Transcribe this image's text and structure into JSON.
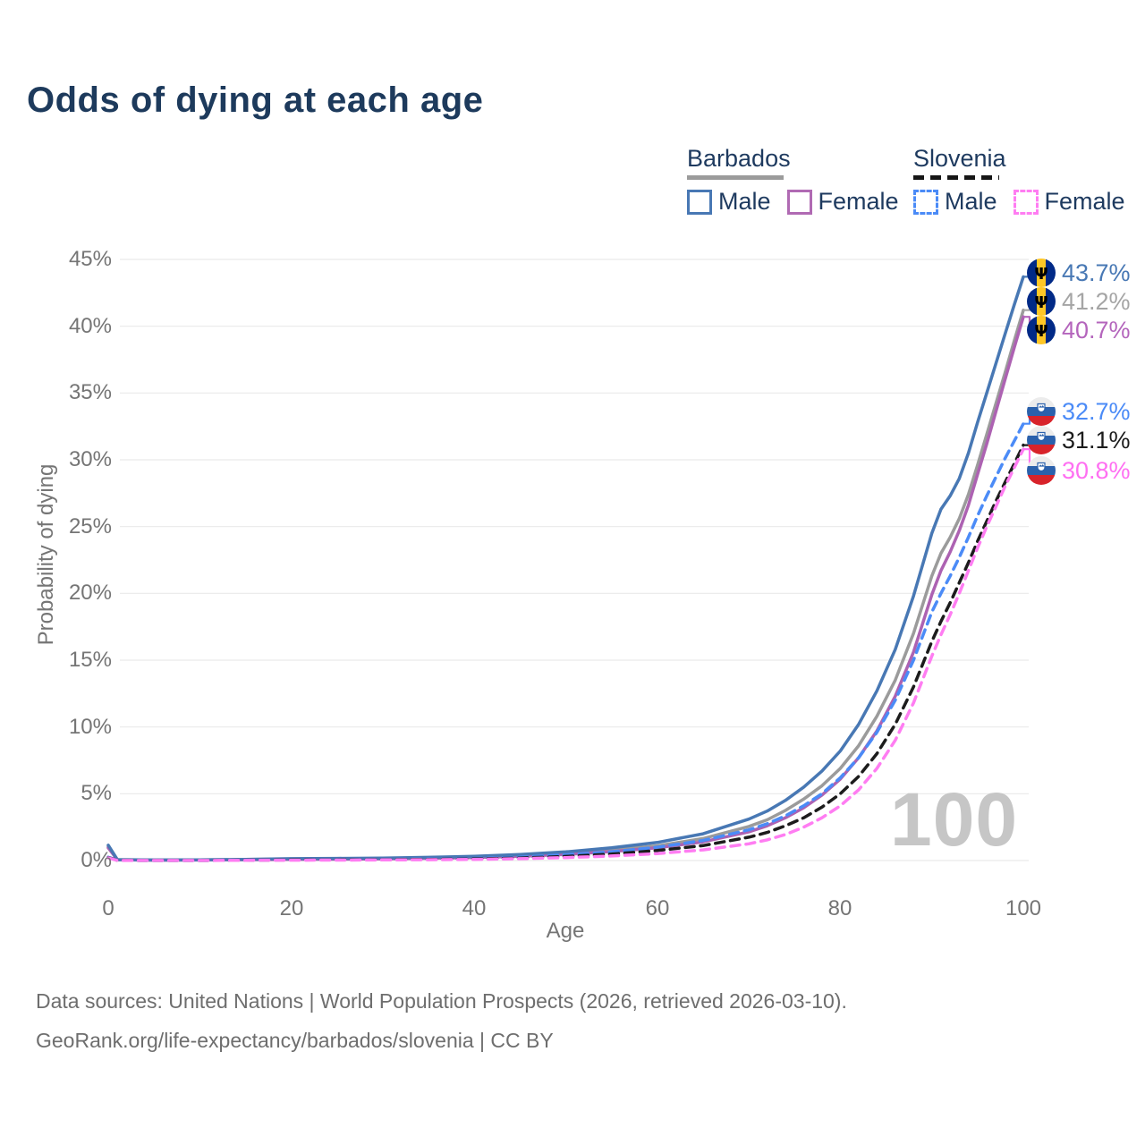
{
  "title": "Odds of dying at each age",
  "legend": {
    "groups": [
      {
        "country": "Barbados",
        "line_style": "solid",
        "items": [
          {
            "label": "Male"
          },
          {
            "label": "Female"
          }
        ]
      },
      {
        "country": "Slovenia",
        "line_style": "dashed",
        "items": [
          {
            "label": "Male"
          },
          {
            "label": "Female"
          }
        ]
      }
    ]
  },
  "y_axis": {
    "title": "Probability of dying",
    "ticks": [
      "45%",
      "40%",
      "35%",
      "30%",
      "25%",
      "20%",
      "15%",
      "10%",
      "5%",
      "0%"
    ]
  },
  "x_axis": {
    "title": "Age",
    "ticks": [
      "0",
      "20",
      "40",
      "60",
      "80",
      "100"
    ]
  },
  "watermark": "100",
  "end_labels": [
    {
      "series": "barbados-male",
      "flag": "barbados",
      "value": "43.7%",
      "color": "#4878b4"
    },
    {
      "series": "barbados-both",
      "flag": "barbados",
      "value": "41.2%",
      "color": "#a5a5a5"
    },
    {
      "series": "barbados-female",
      "flag": "barbados",
      "value": "40.7%",
      "color": "#b465bc"
    },
    {
      "series": "slovenia-male",
      "flag": "slovenia",
      "value": "32.7%",
      "color": "#4b8bf7"
    },
    {
      "series": "slovenia-both",
      "flag": "slovenia",
      "value": "31.1%",
      "color": "#1c1c1c"
    },
    {
      "series": "slovenia-female",
      "flag": "slovenia",
      "value": "30.8%",
      "color": "#ff6ff2"
    }
  ],
  "footer": {
    "line1": "Data sources: United Nations | World Population Prospects (2026, retrieved 2026-03-10).",
    "line2": "GeoRank.org/life-expectancy/barbados/slovenia | CC BY"
  },
  "colors": {
    "title_text": "#1d3a5c",
    "axis_text": "#757575",
    "grid": "#eaeaea",
    "watermark": "#c6c6c6",
    "footer_text": "#6e6e6e",
    "barbados_male": "#4878b4",
    "barbados_both": "#9b9b9b",
    "barbados_female": "#ad62b2",
    "slovenia_male": "#4b8bf7",
    "slovenia_both": "#1c1c1c",
    "slovenia_female": "#ff7df2"
  },
  "chart_data": {
    "type": "line",
    "title": "Odds of dying at each age",
    "xlabel": "Age",
    "ylabel": "Probability of dying",
    "xlim": [
      0,
      100
    ],
    "ylim": [
      0,
      45
    ],
    "y_tick_step": 5,
    "grid": "horizontal",
    "legend_position": "top-right",
    "x": [
      0,
      1,
      5,
      10,
      15,
      20,
      25,
      30,
      35,
      40,
      45,
      50,
      55,
      60,
      65,
      70,
      72,
      74,
      76,
      78,
      80,
      82,
      84,
      86,
      88,
      90,
      91,
      92,
      93,
      94,
      95,
      96,
      97,
      98,
      99,
      100
    ],
    "series": [
      {
        "key": "barbados-both",
        "name": "Barbados Both sexes",
        "color": "#9b9b9b",
        "dash": false,
        "end_value": 41.2,
        "values": [
          1.05,
          0.065,
          0.035,
          0.045,
          0.08,
          0.11,
          0.13,
          0.16,
          0.2,
          0.27,
          0.38,
          0.55,
          0.8,
          1.1,
          1.65,
          2.55,
          3.05,
          3.75,
          4.6,
          5.6,
          6.9,
          8.6,
          10.8,
          13.5,
          17.0,
          21.3,
          23.0,
          24.2,
          25.6,
          27.4,
          29.6,
          31.9,
          34.2,
          36.5,
          38.9,
          41.2
        ]
      },
      {
        "key": "barbados-female",
        "name": "Barbados Female",
        "color": "#ad62b2",
        "dash": false,
        "end_value": 40.7,
        "values": [
          0.95,
          0.06,
          0.03,
          0.04,
          0.06,
          0.08,
          0.1,
          0.13,
          0.17,
          0.23,
          0.32,
          0.46,
          0.67,
          0.95,
          1.4,
          2.15,
          2.6,
          3.2,
          3.95,
          4.9,
          6.1,
          7.7,
          9.7,
          12.3,
          15.6,
          19.9,
          21.7,
          23.1,
          24.7,
          26.6,
          28.9,
          31.2,
          33.6,
          36.0,
          38.4,
          40.7
        ]
      },
      {
        "key": "barbados-male",
        "name": "Barbados Male",
        "color": "#4878b4",
        "dash": false,
        "end_value": 43.7,
        "values": [
          1.15,
          0.07,
          0.04,
          0.05,
          0.09,
          0.14,
          0.16,
          0.19,
          0.24,
          0.32,
          0.45,
          0.65,
          0.95,
          1.35,
          2.0,
          3.1,
          3.7,
          4.5,
          5.5,
          6.7,
          8.2,
          10.2,
          12.7,
          15.8,
          19.8,
          24.5,
          26.3,
          27.3,
          28.6,
          30.5,
          32.8,
          35.0,
          37.2,
          39.4,
          41.6,
          43.7
        ]
      },
      {
        "key": "slovenia-male",
        "name": "Slovenia Male",
        "color": "#4b8bf7",
        "dash": true,
        "end_value": 32.7,
        "values": [
          0.25,
          0.02,
          0.01,
          0.01,
          0.03,
          0.06,
          0.07,
          0.08,
          0.11,
          0.16,
          0.25,
          0.42,
          0.65,
          1.0,
          1.5,
          2.3,
          2.75,
          3.35,
          4.1,
          5.0,
          6.2,
          7.7,
          9.6,
          12.0,
          15.0,
          18.6,
          20.0,
          21.3,
          22.7,
          24.2,
          25.8,
          27.3,
          28.7,
          30.1,
          31.4,
          32.7
        ]
      },
      {
        "key": "slovenia-both",
        "name": "Slovenia Both sexes",
        "color": "#1c1c1c",
        "dash": true,
        "end_value": 31.1,
        "values": [
          0.22,
          0.018,
          0.009,
          0.009,
          0.025,
          0.045,
          0.055,
          0.065,
          0.085,
          0.125,
          0.19,
          0.31,
          0.48,
          0.75,
          1.12,
          1.75,
          2.1,
          2.6,
          3.2,
          4.0,
          5.0,
          6.3,
          8.0,
          10.2,
          13.0,
          16.4,
          17.9,
          19.3,
          20.8,
          22.3,
          23.9,
          25.4,
          26.9,
          28.3,
          29.7,
          31.1
        ]
      },
      {
        "key": "slovenia-female",
        "name": "Slovenia Female",
        "color": "#ff7df2",
        "dash": true,
        "end_value": 30.8,
        "values": [
          0.2,
          0.015,
          0.008,
          0.008,
          0.02,
          0.03,
          0.035,
          0.045,
          0.06,
          0.09,
          0.14,
          0.22,
          0.34,
          0.52,
          0.8,
          1.25,
          1.55,
          1.95,
          2.5,
          3.2,
          4.1,
          5.3,
          6.9,
          9.0,
          11.8,
          15.3,
          16.9,
          18.4,
          20.0,
          21.7,
          23.4,
          25.0,
          26.5,
          28.0,
          29.4,
          30.8
        ]
      }
    ]
  }
}
